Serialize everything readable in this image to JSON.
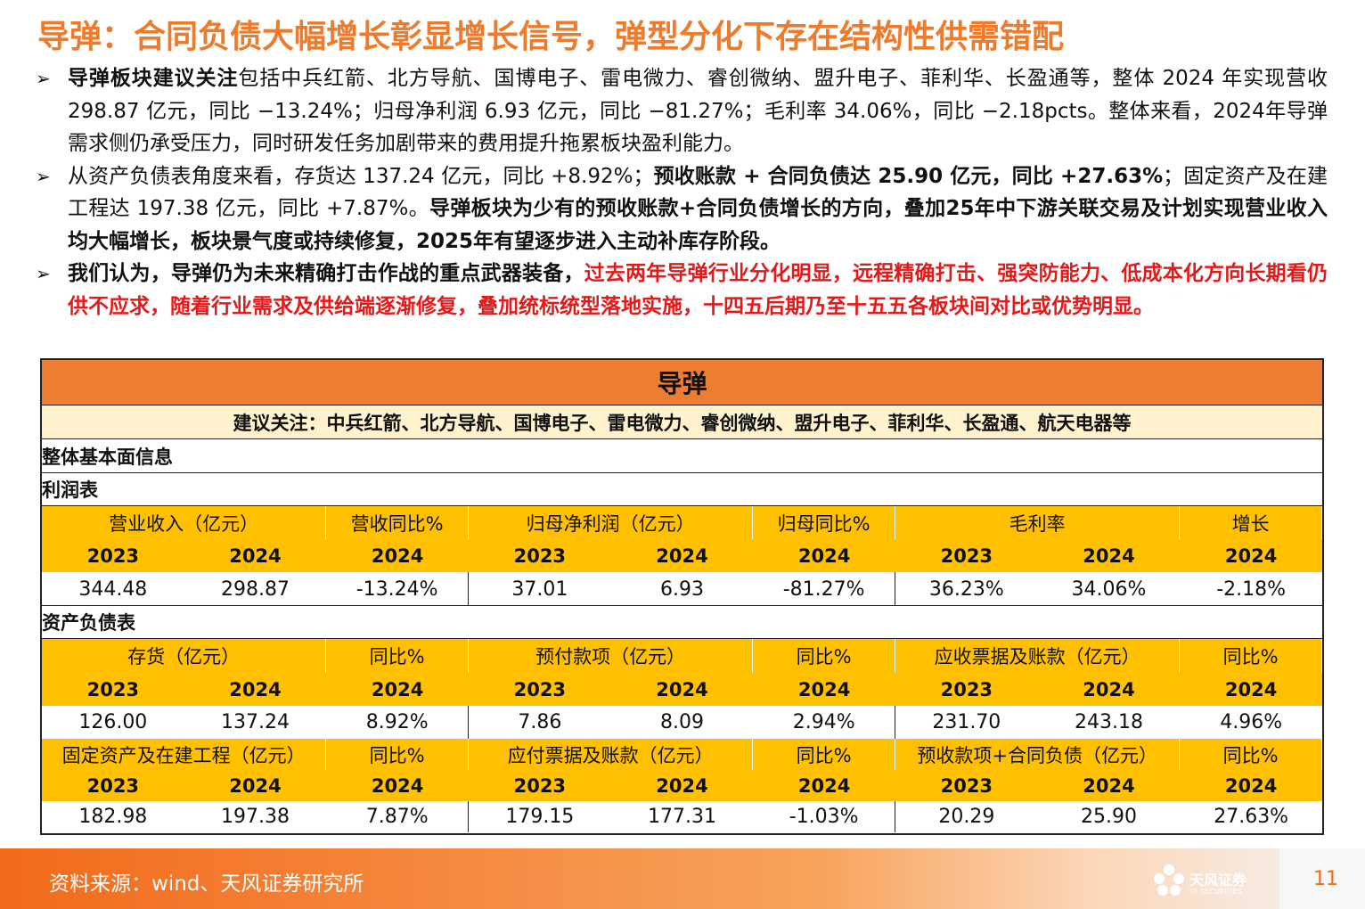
{
  "title": "导弹：合同负债大幅增长彰显增长信号，弹型分化下存在结构性供需错配",
  "bullets": [
    {
      "segments": [
        {
          "text": "导弹板块建议关注",
          "style": "bold"
        },
        {
          "text": "包括中兵红箭、北方导航、国博电子、雷电微力、睿创微纳、盟升电子、菲利华、长盈通等，整体 2024 年实现营收 298.87 亿元，同比 −13.24%；归母净利润 6.93 亿元，同比 −81.27%；毛利率 34.06%，同比 −2.18pcts。整体来看，2024年导弹需求侧仍承受压力，同时研发任务加剧带来的费用提升拖累板块盈利能力。",
          "style": "normal"
        }
      ]
    },
    {
      "segments": [
        {
          "text": "从资产负债表角度来看，存货达 137.24 亿元，同比 +8.92%；",
          "style": "normal"
        },
        {
          "text": "预收账款 + 合同负债达 25.90 亿元，同比 +27.63%",
          "style": "bold"
        },
        {
          "text": "；固定资产及在建工程达 197.38 亿元，同比 +7.87%。",
          "style": "normal"
        },
        {
          "text": "导弹板块为少有的预收账款+合同负债增长的方向，叠加25年中下游关联交易及计划实现营业收入均大幅增长，板块景气度或持续修复，2025年有望逐步进入主动补库存阶段。",
          "style": "bold"
        }
      ]
    },
    {
      "segments": [
        {
          "text": "我们认为，导弹仍为未来精确打击作战的重点武器装备，",
          "style": "bold"
        },
        {
          "text": "过去两年导弹行业分化明显，远程精确打击、强突防能力、低成本化方向长期看仍供不应求，随着行业需求及供给端逐渐修复，叠加统标统型落地实施，十四五后期乃至十五五各板块间对比或优势明显。",
          "style": "red"
        }
      ]
    }
  ],
  "table": {
    "title": "导弹",
    "recommend": "建议关注：中兵红箭、北方导航、国博电子、雷电微力、睿创微纳、盟升电子、菲利华、长盈通、航天电器等",
    "overview": "整体基本面信息",
    "sections": [
      {
        "name": "利润表",
        "blocks": [
          {
            "groups": [
              "营业收入（亿元）",
              "营收同比%",
              "归母净利润（亿元）",
              "归母同比%",
              "毛利率",
              "增长"
            ],
            "years": [
              "2023",
              "2024",
              "2024",
              "2023",
              "2024",
              "2024",
              "2023",
              "2024",
              "2024"
            ],
            "values": [
              "344.48",
              "298.87",
              "-13.24%",
              "37.01",
              "6.93",
              "-81.27%",
              "36.23%",
              "34.06%",
              "-2.18%"
            ]
          }
        ]
      },
      {
        "name": "资产负债表",
        "blocks": [
          {
            "groups": [
              "存货（亿元）",
              "同比%",
              "预付款项（亿元）",
              "同比%",
              "应收票据及账款（亿元）",
              "同比%"
            ],
            "years": [
              "2023",
              "2024",
              "2024",
              "2023",
              "2024",
              "2024",
              "2023",
              "2024",
              "2024"
            ],
            "values": [
              "126.00",
              "137.24",
              "8.92%",
              "7.86",
              "8.09",
              "2.94%",
              "231.70",
              "243.18",
              "4.96%"
            ]
          },
          {
            "groups": [
              "固定资产及在建工程（亿元）",
              "同比%",
              "应付票据及账款（亿元）",
              "同比%",
              "预收款项+合同负债（亿元）",
              "同比%"
            ],
            "years": [
              "2023",
              "2024",
              "2024",
              "2023",
              "2024",
              "2024",
              "2023",
              "2024",
              "2024"
            ],
            "values": [
              "182.98",
              "197.38",
              "7.87%",
              "179.15",
              "177.31",
              "-1.03%",
              "20.29",
              "25.90",
              "27.63%"
            ]
          }
        ]
      }
    ]
  },
  "footer": {
    "source": "资料来源：wind、天风证券研究所",
    "logo": "天风证券",
    "logo_en": "TF SECURITIES",
    "page": "11"
  }
}
